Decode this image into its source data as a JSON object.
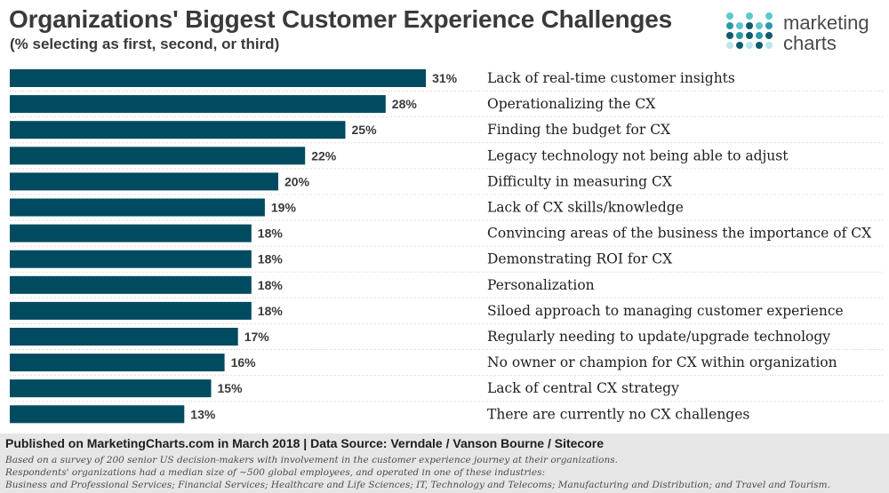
{
  "header": {
    "title": "Organizations' Biggest Customer Experience Challenges",
    "subtitle": "(% selecting as first, second, or third)"
  },
  "logo": {
    "line1": "marketing",
    "line2": "charts",
    "colors": [
      "#5cc8d0",
      "#2a9aa8",
      "#0d5b6e",
      "#b8e6ea"
    ]
  },
  "chart_data": {
    "type": "bar",
    "orientation": "horizontal",
    "bar_color": "#004b5f",
    "value_suffix": "%",
    "xlim": [
      0,
      32
    ],
    "categories": [
      "Lack of real-time customer insights",
      "Operationalizing the CX",
      "Finding the budget for CX",
      "Legacy technology not being able to adjust",
      "Difficulty in measuring CX",
      "Lack of CX skills/knowledge",
      "Convincing areas of the business the importance of CX",
      "Demonstrating ROI for CX",
      "Personalization",
      "Siloed approach to managing customer experience",
      "Regularly needing to update/upgrade technology",
      "No owner or champion for CX within organization",
      "Lack of central CX strategy",
      "There are currently no CX challenges"
    ],
    "values": [
      31,
      28,
      25,
      22,
      20,
      19,
      18,
      18,
      18,
      18,
      17,
      16,
      15,
      13
    ]
  },
  "footer": {
    "published": "Published on MarketingCharts.com in March 2018 | Data Source: Verndale / Vanson Bourne / Sitecore",
    "note1": "Based on a survey of 200 senior US decision-makers with involvement in the customer experience journey at their organizations.",
    "note2": "Respondents' organizations had a median size of ~500 global employees, and operated in one of these industries:",
    "note3": "Business and Professional Services; Financial Services; Healthcare and Life Sciences; IT, Technology and Telecoms; Manufacturing and Distribution; and Travel and Tourism."
  }
}
